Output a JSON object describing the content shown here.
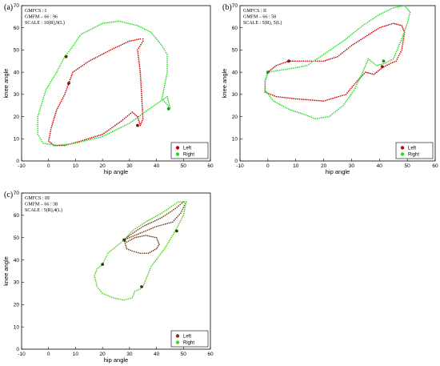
{
  "chart_data": [
    {
      "type": "scatter",
      "panel_label": "(a)",
      "info": [
        "GMFCS : I",
        "GMFM – 66 : 96",
        "SCALE : 10(R),9(L)"
      ],
      "xlabel": "hip angle",
      "ylabel": "knee angle",
      "xlim": [
        -10,
        60
      ],
      "ylim": [
        0,
        70
      ],
      "xticks": [
        -10,
        0,
        10,
        20,
        30,
        40,
        50,
        60
      ],
      "yticks": [
        0,
        10,
        20,
        30,
        40,
        50,
        60,
        70
      ],
      "legend": {
        "position": "bottom-right",
        "entries": [
          "Left",
          "Right"
        ]
      },
      "series": [
        {
          "name": "Left",
          "color": "#cc0000",
          "x": [
            7.5,
            6,
            3,
            1,
            0,
            2,
            6,
            12,
            20,
            27,
            31,
            33,
            34,
            35,
            34,
            33,
            35,
            35,
            34,
            30,
            23,
            15,
            9,
            7.5
          ],
          "y": [
            35,
            30,
            23,
            15,
            9,
            7,
            7,
            9,
            12,
            18,
            22,
            20,
            16,
            19,
            40,
            50,
            54,
            55,
            55,
            54,
            50,
            45,
            40,
            35
          ]
        },
        {
          "name": "Right",
          "color": "#22dd22",
          "x": [
            6,
            3,
            -1,
            -4,
            -4,
            -2,
            3,
            10,
            20,
            30,
            38,
            44,
            45,
            42,
            44,
            44,
            42,
            38,
            33,
            26,
            20,
            12,
            8,
            6
          ],
          "y": [
            47,
            40,
            32,
            20,
            12,
            8,
            7,
            8,
            11,
            17,
            24,
            29,
            24,
            28,
            40,
            48,
            52,
            58,
            61,
            63,
            62,
            57,
            50,
            47
          ]
        }
      ],
      "markers": [
        {
          "x": 6.5,
          "y": 47,
          "color": "#8b1010"
        },
        {
          "x": 7.5,
          "y": 35,
          "color": "#8b1010"
        },
        {
          "x": 33,
          "y": 16,
          "color": "#8b1010"
        },
        {
          "x": 44.5,
          "y": 23.5,
          "color": "#228b22"
        }
      ]
    },
    {
      "type": "scatter",
      "panel_label": "(b)",
      "info": [
        "GMFCS : II",
        "GMFM – 66 : 58",
        "SCALE : 5(R), 5(L)"
      ],
      "xlabel": "hip angle",
      "ylabel": "knee angle",
      "xlim": [
        -10,
        60
      ],
      "ylim": [
        0,
        70
      ],
      "xticks": [
        -10,
        0,
        10,
        20,
        30,
        40,
        50,
        60
      ],
      "yticks": [
        0,
        10,
        20,
        30,
        40,
        50,
        60,
        70
      ],
      "legend": {
        "position": "bottom-right",
        "entries": [
          "Left",
          "Right"
        ]
      },
      "series": [
        {
          "name": "Left",
          "color": "#cc0000",
          "x": [
            7.5,
            3,
            0,
            -1,
            -1,
            3,
            10,
            20,
            28,
            32,
            35,
            38,
            41,
            44,
            46,
            48,
            49,
            48,
            45,
            40,
            35,
            30,
            25,
            20,
            15,
            10,
            7.5
          ],
          "y": [
            45,
            43,
            40,
            36,
            31,
            29,
            28,
            27,
            30,
            36,
            40,
            39,
            42,
            44,
            45,
            50,
            58,
            61,
            62,
            60,
            56,
            52,
            47,
            45,
            45,
            45,
            45
          ]
        },
        {
          "name": "Right",
          "color": "#22dd22",
          "x": [
            0,
            -1,
            -1,
            2,
            8,
            13,
            17,
            22,
            27,
            31,
            34,
            36,
            37,
            39,
            42,
            45,
            48,
            50,
            51,
            49,
            45,
            40,
            34,
            27,
            20,
            14,
            10,
            5,
            0
          ],
          "y": [
            40,
            36,
            32,
            27,
            23,
            21,
            19,
            20,
            25,
            32,
            40,
            46,
            45,
            43,
            44,
            46,
            55,
            62,
            67,
            70,
            69,
            66,
            61,
            54,
            48,
            43,
            42,
            41,
            40
          ]
        }
      ],
      "markers": [
        {
          "x": 7.5,
          "y": 45,
          "color": "#8b1010"
        },
        {
          "x": 0,
          "y": 40,
          "color": "#228b22"
        },
        {
          "x": 41.5,
          "y": 45,
          "color": "#228b22"
        },
        {
          "x": 41,
          "y": 42.5,
          "color": "#8b1010"
        }
      ]
    },
    {
      "type": "scatter",
      "panel_label": "(c)",
      "info": [
        "GMFCS : III",
        "GMFM – 66 : 38",
        "SCALE : 5(R),4(L)"
      ],
      "xlabel": "hip angle",
      "ylabel": "knee angle",
      "xlim": [
        -10,
        60
      ],
      "ylim": [
        0,
        70
      ],
      "xticks": [
        -10,
        0,
        10,
        20,
        30,
        40,
        50,
        60
      ],
      "yticks": [
        0,
        10,
        20,
        30,
        40,
        50,
        60,
        70
      ],
      "legend": {
        "position": "bottom-right",
        "entries": [
          "Left",
          "Right"
        ]
      },
      "series": [
        {
          "name": "Left",
          "color": "#6b3a1a",
          "x": [
            28,
            29,
            31,
            34,
            37,
            40,
            41,
            40,
            36,
            32,
            29,
            28,
            30,
            35,
            42,
            47,
            50,
            51,
            49,
            46,
            40,
            34,
            30,
            28
          ],
          "y": [
            49,
            45,
            44,
            43,
            43,
            45,
            47,
            50,
            51,
            50,
            48,
            49,
            51,
            55,
            59,
            63,
            66,
            66,
            61,
            57,
            55,
            52,
            50,
            49
          ]
        },
        {
          "name": "Right",
          "color": "#55cc22",
          "x": [
            20,
            18,
            17,
            18,
            20,
            24,
            28,
            31,
            32,
            34,
            35,
            38,
            43,
            47,
            50,
            51,
            48,
            42,
            36,
            31,
            28,
            25,
            22,
            20
          ],
          "y": [
            38,
            36,
            33,
            28,
            25,
            23,
            22,
            23,
            26,
            27,
            28,
            37,
            45,
            53,
            60,
            66,
            66,
            61,
            57,
            53,
            49,
            46,
            43,
            38
          ]
        }
      ],
      "markers": [
        {
          "x": 20,
          "y": 38,
          "color": "#3a3a1a"
        },
        {
          "x": 28,
          "y": 49,
          "color": "#3a3a1a"
        },
        {
          "x": 47.5,
          "y": 53,
          "color": "#3a3a1a"
        },
        {
          "x": 34.5,
          "y": 28,
          "color": "#3a3a1a"
        }
      ]
    }
  ]
}
